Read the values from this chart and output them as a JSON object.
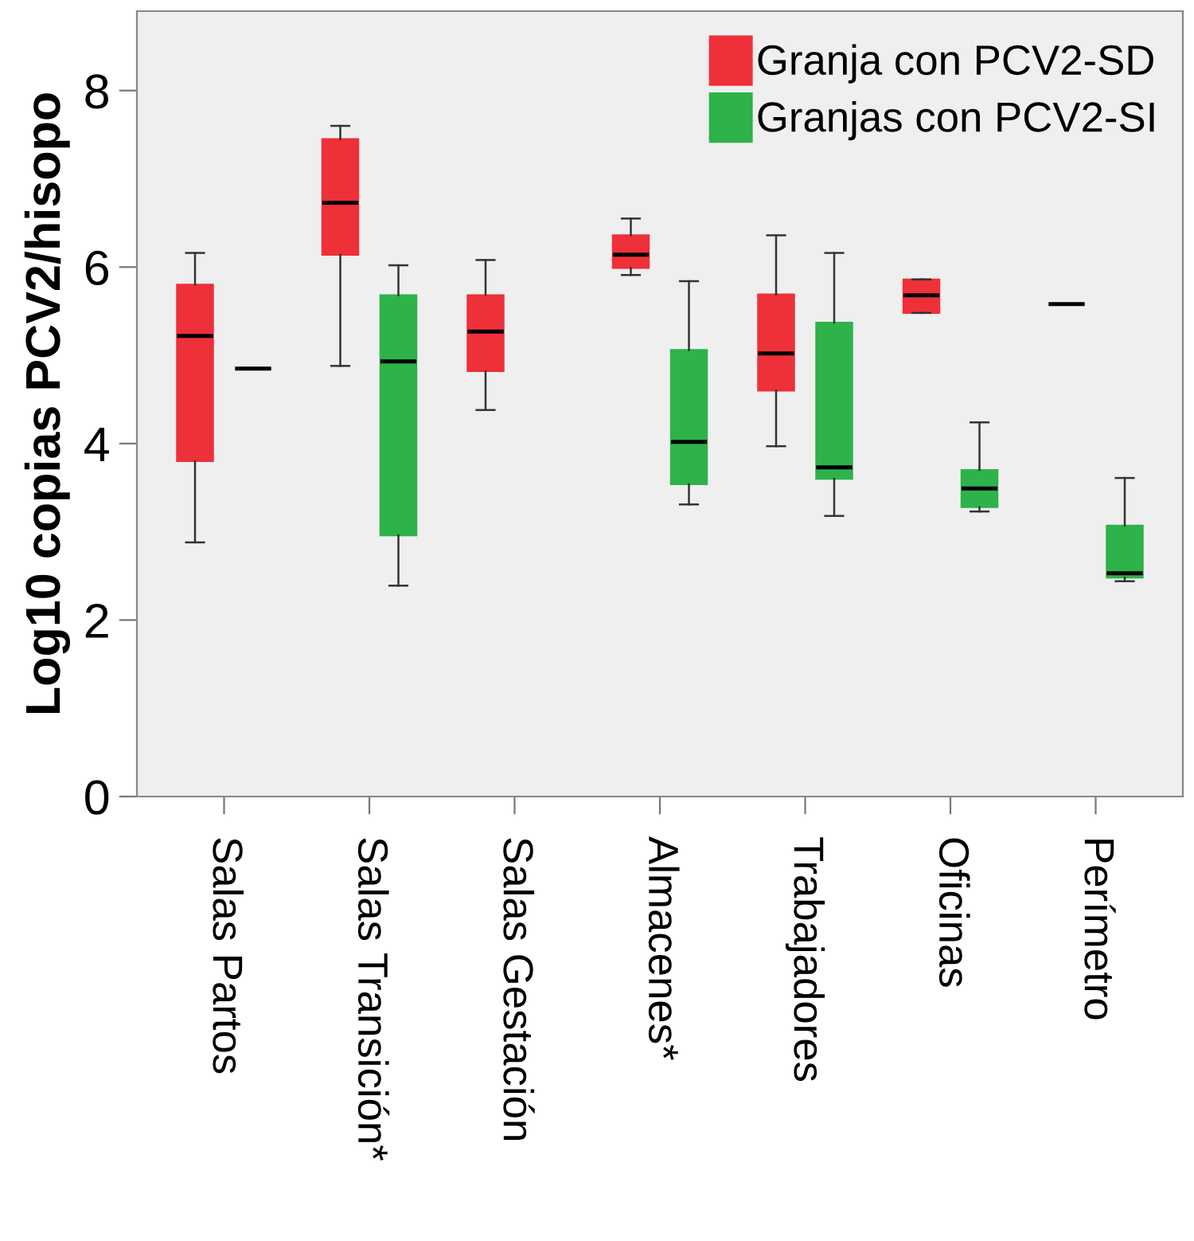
{
  "chart_data": {
    "type": "box",
    "ylabel": "Log10 copias PCV2/hisopo",
    "categories": [
      "Salas Partos",
      "Salas Transición*",
      "Salas Gestación",
      "Almacenes*",
      "Trabajadores",
      "Oficinas",
      "Perímetro"
    ],
    "series": [
      {
        "name": "Granja con PCV2-SD",
        "color": "#ee3039",
        "boxes": [
          {
            "low": 2.88,
            "q1": 3.8,
            "median": 5.22,
            "q3": 5.8,
            "high": 6.16
          },
          {
            "low": 4.88,
            "q1": 6.14,
            "median": 6.73,
            "q3": 7.45,
            "high": 7.6
          },
          {
            "low": 4.38,
            "q1": 4.82,
            "median": 5.27,
            "q3": 5.68,
            "high": 6.08
          },
          {
            "low": 5.91,
            "q1": 5.99,
            "median": 6.14,
            "q3": 6.36,
            "high": 6.55
          },
          {
            "low": 3.97,
            "q1": 4.6,
            "median": 5.02,
            "q3": 5.69,
            "high": 6.36
          },
          {
            "low": 5.48,
            "q1": 5.48,
            "median": 5.68,
            "q3": 5.86,
            "high": 5.86
          },
          {
            "low": 5.58,
            "q1": 5.58,
            "median": 5.58,
            "q3": 5.58,
            "high": 5.58
          }
        ]
      },
      {
        "name": "Granjas con PCV2-SI",
        "color": "#2db34a",
        "boxes": [
          {
            "low": 4.85,
            "q1": 4.85,
            "median": 4.85,
            "q3": 4.85,
            "high": 4.85
          },
          {
            "low": 2.39,
            "q1": 2.96,
            "median": 4.93,
            "q3": 5.68,
            "high": 6.02
          },
          null,
          {
            "low": 3.31,
            "q1": 3.54,
            "median": 4.02,
            "q3": 5.06,
            "high": 5.84
          },
          {
            "low": 3.18,
            "q1": 3.6,
            "median": 3.73,
            "q3": 5.37,
            "high": 6.16
          },
          {
            "low": 3.23,
            "q1": 3.28,
            "median": 3.49,
            "q3": 3.7,
            "high": 4.24
          },
          {
            "low": 2.44,
            "q1": 2.48,
            "median": 2.53,
            "q3": 3.07,
            "high": 3.61
          }
        ]
      }
    ],
    "ylim": [
      0,
      8.9
    ],
    "yticks": [
      0,
      2,
      4,
      6,
      8
    ],
    "grid": false,
    "legend": "top right"
  }
}
